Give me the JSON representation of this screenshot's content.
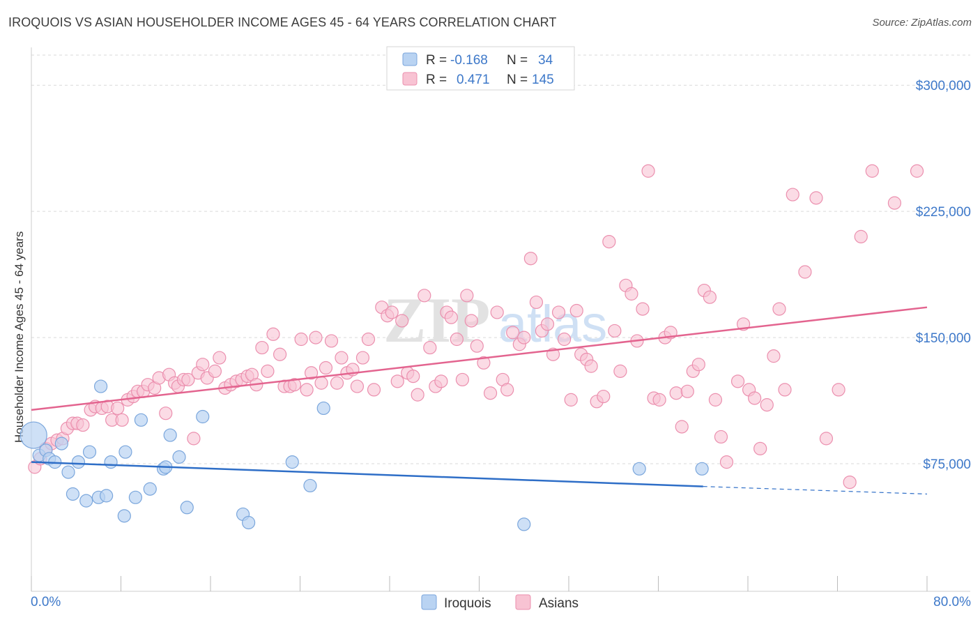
{
  "title": "IROQUOIS VS ASIAN HOUSEHOLDER INCOME AGES 45 - 64 YEARS CORRELATION CHART",
  "source": "Source: ZipAtlas.com",
  "watermark": {
    "zip": "ZIP",
    "atlas": "atlas"
  },
  "colors": {
    "blue_fill": "#b9d3f2",
    "blue_stroke": "#7aa6dc",
    "blue_line": "#2e6ec7",
    "pink_fill": "#f8c3d3",
    "pink_stroke": "#eb8fae",
    "pink_line": "#e3648f",
    "axis_text": "#3d78c9",
    "grid": "#d9d9d9"
  },
  "legend": {
    "row1": {
      "r_label": "R =",
      "r_value": "-0.168",
      "n_label": "N =",
      "n_value": "34"
    },
    "row2": {
      "r_label": "R =",
      "r_value": "0.471",
      "n_label": "N =",
      "n_value": "145"
    }
  },
  "chart_data": {
    "type": "scatter",
    "xlabel": "",
    "ylabel": "Householder Income Ages 45 - 64 years",
    "xlim": [
      0,
      80
    ],
    "ylim": [
      0,
      320000
    ],
    "x_tick_labels": [
      "0.0%",
      "80.0%"
    ],
    "y_tick_values": [
      75000,
      150000,
      225000,
      300000
    ],
    "y_tick_labels": [
      "$75,000",
      "$150,000",
      "$225,000",
      "$300,000"
    ],
    "series": [
      {
        "name": "Iroquois",
        "r": -0.168,
        "n": 34,
        "trend": {
          "x0": 0,
          "y0": 76000,
          "x1": 60,
          "y1": 61500,
          "x_dash_end": 80,
          "y_dash_end": 57000
        },
        "points": [
          [
            0.2,
            92000,
            "big"
          ],
          [
            0.7,
            80000
          ],
          [
            1.3,
            83000
          ],
          [
            1.6,
            78000
          ],
          [
            2.1,
            76000
          ],
          [
            2.7,
            87000
          ],
          [
            3.3,
            70000
          ],
          [
            3.7,
            57000
          ],
          [
            4.2,
            76000
          ],
          [
            4.9,
            53000
          ],
          [
            5.2,
            82000
          ],
          [
            6.0,
            55000
          ],
          [
            6.2,
            121000
          ],
          [
            6.7,
            56000
          ],
          [
            7.1,
            76000
          ],
          [
            8.3,
            44000
          ],
          [
            8.4,
            82000
          ],
          [
            9.3,
            55000
          ],
          [
            9.8,
            101000
          ],
          [
            10.6,
            60000
          ],
          [
            11.8,
            72000
          ],
          [
            12.0,
            73000
          ],
          [
            12.4,
            92000
          ],
          [
            13.2,
            79000
          ],
          [
            13.9,
            49000
          ],
          [
            15.3,
            103000
          ],
          [
            18.9,
            45000
          ],
          [
            19.4,
            40000
          ],
          [
            23.3,
            76000
          ],
          [
            24.9,
            62000
          ],
          [
            26.1,
            108000
          ],
          [
            44.0,
            39000
          ],
          [
            54.3,
            72000
          ],
          [
            59.9,
            72000
          ]
        ]
      },
      {
        "name": "Asians",
        "r": 0.471,
        "n": 145,
        "trend": {
          "x0": 0,
          "y0": 107000,
          "x1": 80,
          "y1": 168000
        },
        "points": [
          [
            0.3,
            73000
          ],
          [
            0.8,
            78000
          ],
          [
            1.3,
            84000
          ],
          [
            1.8,
            87000
          ],
          [
            2.3,
            89000
          ],
          [
            2.8,
            90000
          ],
          [
            3.2,
            96000
          ],
          [
            3.7,
            99000
          ],
          [
            4.1,
            99000
          ],
          [
            4.6,
            98000
          ],
          [
            5.3,
            107000
          ],
          [
            5.7,
            109000
          ],
          [
            6.3,
            108000
          ],
          [
            6.8,
            109000
          ],
          [
            7.2,
            101000
          ],
          [
            7.7,
            108000
          ],
          [
            8.1,
            101000
          ],
          [
            8.6,
            113000
          ],
          [
            9.1,
            115000
          ],
          [
            9.5,
            118000
          ],
          [
            10.0,
            118000
          ],
          [
            10.4,
            122000
          ],
          [
            11.0,
            120000
          ],
          [
            11.4,
            126000
          ],
          [
            12.0,
            105000
          ],
          [
            12.3,
            128000
          ],
          [
            12.8,
            123000
          ],
          [
            13.1,
            121000
          ],
          [
            13.6,
            125000
          ],
          [
            14.0,
            125000
          ],
          [
            14.5,
            90000
          ],
          [
            14.9,
            129000
          ],
          [
            15.3,
            134000
          ],
          [
            15.7,
            126000
          ],
          [
            16.4,
            130000
          ],
          [
            16.8,
            138000
          ],
          [
            17.3,
            120000
          ],
          [
            17.8,
            122000
          ],
          [
            18.3,
            124000
          ],
          [
            18.8,
            125000
          ],
          [
            19.3,
            127000
          ],
          [
            19.7,
            128000
          ],
          [
            20.1,
            122000
          ],
          [
            20.6,
            144000
          ],
          [
            21.1,
            130000
          ],
          [
            21.6,
            152000
          ],
          [
            22.2,
            140000
          ],
          [
            22.6,
            121000
          ],
          [
            23.1,
            121000
          ],
          [
            23.5,
            122000
          ],
          [
            24.1,
            149000
          ],
          [
            24.6,
            119000
          ],
          [
            25.0,
            129000
          ],
          [
            25.4,
            150000
          ],
          [
            25.9,
            123000
          ],
          [
            26.3,
            132000
          ],
          [
            26.8,
            148000
          ],
          [
            27.3,
            123000
          ],
          [
            27.7,
            138000
          ],
          [
            28.2,
            129000
          ],
          [
            28.7,
            131000
          ],
          [
            29.1,
            121000
          ],
          [
            29.6,
            138000
          ],
          [
            30.1,
            149000
          ],
          [
            30.6,
            119000
          ],
          [
            31.3,
            168000
          ],
          [
            31.8,
            163000
          ],
          [
            32.2,
            165000
          ],
          [
            32.7,
            124000
          ],
          [
            33.1,
            160000
          ],
          [
            33.6,
            129000
          ],
          [
            34.1,
            127000
          ],
          [
            34.5,
            116000
          ],
          [
            35.1,
            175000
          ],
          [
            35.6,
            144000
          ],
          [
            36.1,
            121000
          ],
          [
            36.6,
            124000
          ],
          [
            37.1,
            165000
          ],
          [
            37.5,
            162000
          ],
          [
            38.0,
            149000
          ],
          [
            38.5,
            125000
          ],
          [
            38.9,
            175000
          ],
          [
            39.3,
            160000
          ],
          [
            39.8,
            145000
          ],
          [
            40.4,
            135000
          ],
          [
            41.0,
            117000
          ],
          [
            41.6,
            165000
          ],
          [
            42.1,
            125000
          ],
          [
            42.5,
            119000
          ],
          [
            43.0,
            153000
          ],
          [
            43.6,
            146000
          ],
          [
            44.0,
            150000
          ],
          [
            44.6,
            197000
          ],
          [
            45.1,
            171000
          ],
          [
            45.6,
            154000
          ],
          [
            46.1,
            158000
          ],
          [
            46.6,
            140000
          ],
          [
            47.1,
            165000
          ],
          [
            47.6,
            149000
          ],
          [
            48.2,
            113000
          ],
          [
            48.7,
            166000
          ],
          [
            49.1,
            140000
          ],
          [
            49.6,
            137000
          ],
          [
            50.0,
            133000
          ],
          [
            50.5,
            112000
          ],
          [
            51.1,
            115000
          ],
          [
            51.6,
            207000
          ],
          [
            52.1,
            154000
          ],
          [
            52.6,
            130000
          ],
          [
            53.1,
            181000
          ],
          [
            53.6,
            176000
          ],
          [
            54.1,
            148000
          ],
          [
            54.6,
            167000
          ],
          [
            55.1,
            249000
          ],
          [
            55.6,
            114000
          ],
          [
            56.1,
            113000
          ],
          [
            56.6,
            150000
          ],
          [
            57.1,
            153000
          ],
          [
            57.6,
            117000
          ],
          [
            58.1,
            97000
          ],
          [
            58.6,
            118000
          ],
          [
            59.1,
            130000
          ],
          [
            59.6,
            134000
          ],
          [
            60.1,
            178000
          ],
          [
            60.6,
            174000
          ],
          [
            61.1,
            113000
          ],
          [
            61.6,
            91000
          ],
          [
            62.1,
            76000
          ],
          [
            63.1,
            124000
          ],
          [
            63.6,
            158000
          ],
          [
            64.1,
            119000
          ],
          [
            64.6,
            114000
          ],
          [
            65.1,
            84000
          ],
          [
            65.7,
            110000
          ],
          [
            66.3,
            139000
          ],
          [
            66.8,
            167000
          ],
          [
            67.3,
            119000
          ],
          [
            68.0,
            235000
          ],
          [
            69.1,
            189000
          ],
          [
            70.1,
            233000
          ],
          [
            71.0,
            90000
          ],
          [
            72.1,
            119000
          ],
          [
            73.1,
            64000
          ],
          [
            74.1,
            210000
          ],
          [
            75.1,
            249000
          ],
          [
            77.1,
            230000
          ],
          [
            79.1,
            249000
          ]
        ]
      }
    ]
  }
}
